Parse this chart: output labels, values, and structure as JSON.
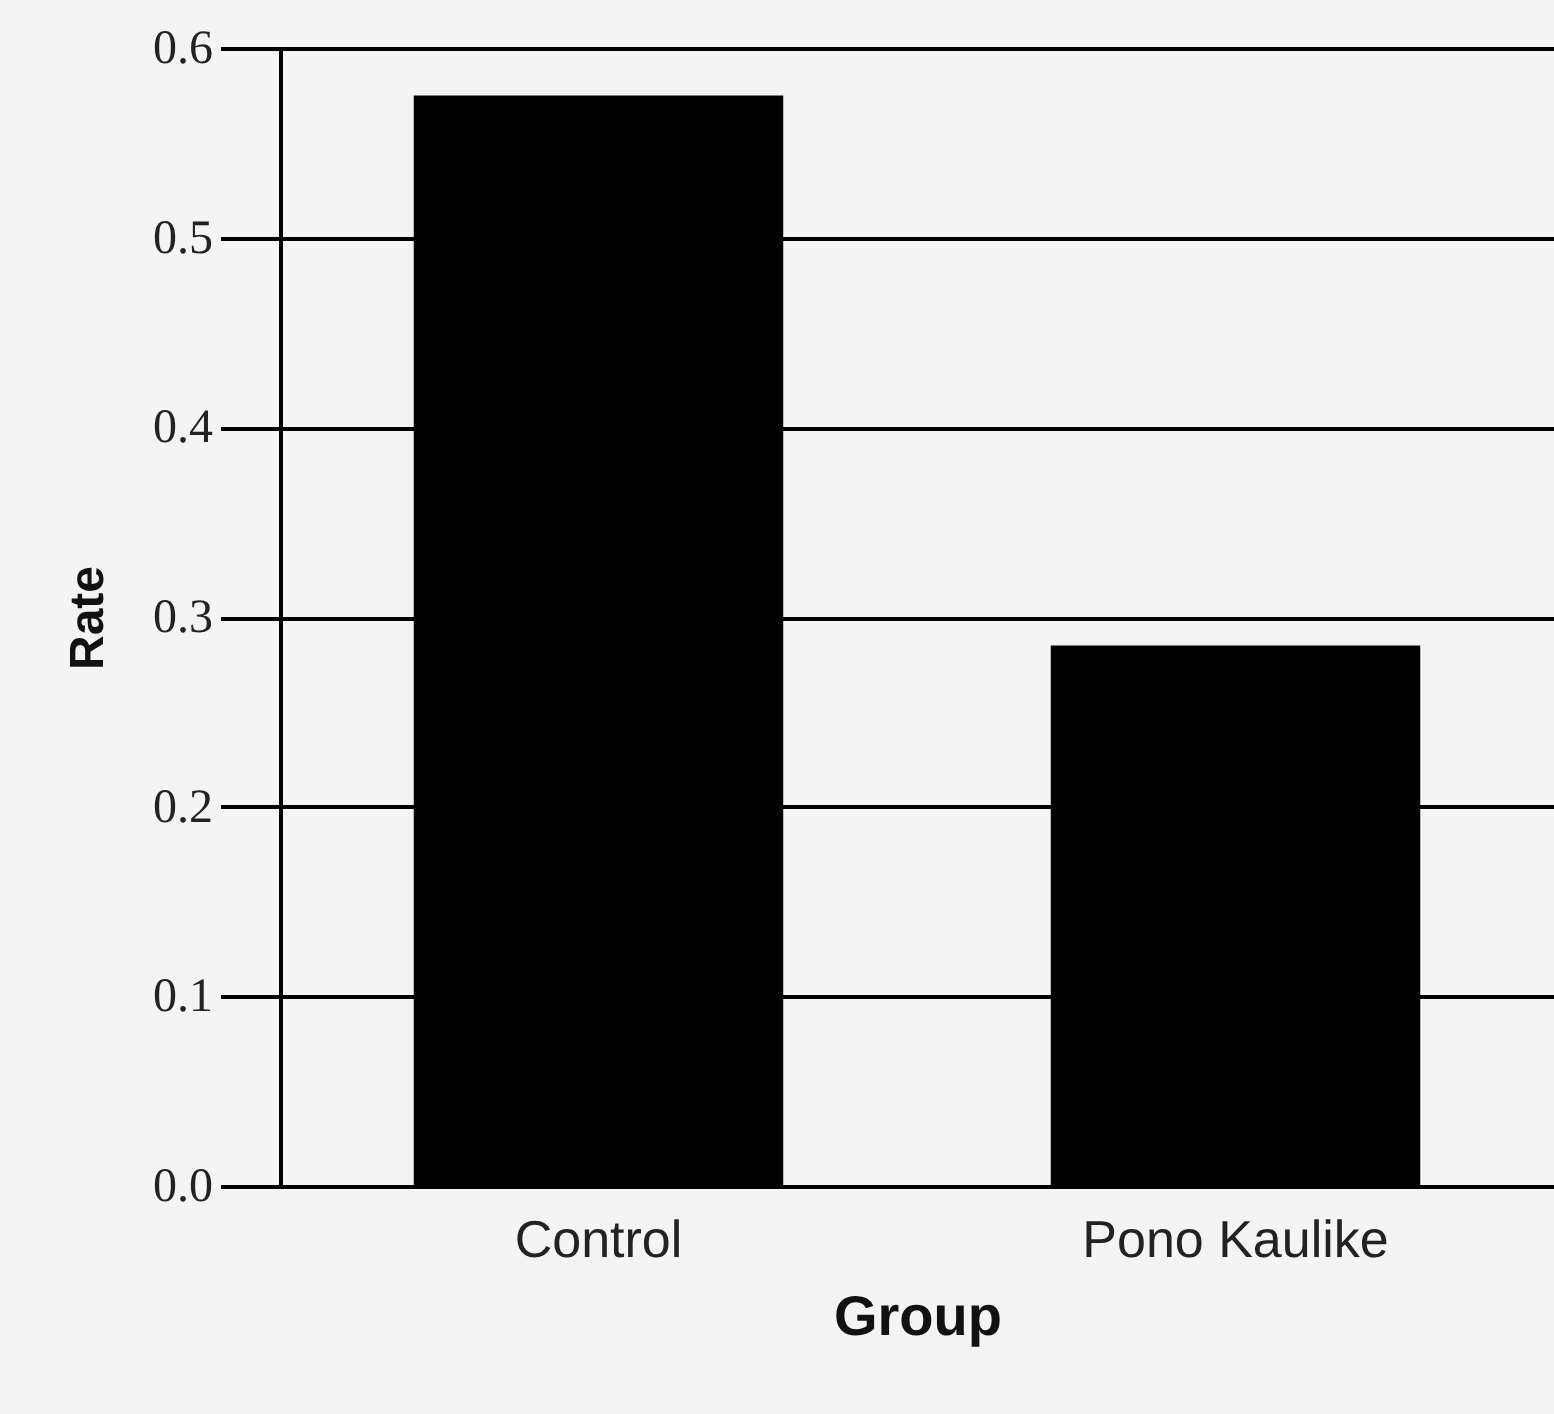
{
  "chart_data": {
    "type": "bar",
    "xlabel": "Group",
    "ylabel": "Rate",
    "categories": [
      "Control",
      "Pono Kaulike"
    ],
    "values": [
      0.575,
      0.285
    ],
    "color": "#000000",
    "ylim": [
      0,
      0.6
    ],
    "yticks": [
      {
        "value": 0,
        "label": "0.0"
      },
      0.1,
      0.2,
      0.3,
      0.4,
      0.5,
      0.6
    ],
    "grid": "y"
  }
}
